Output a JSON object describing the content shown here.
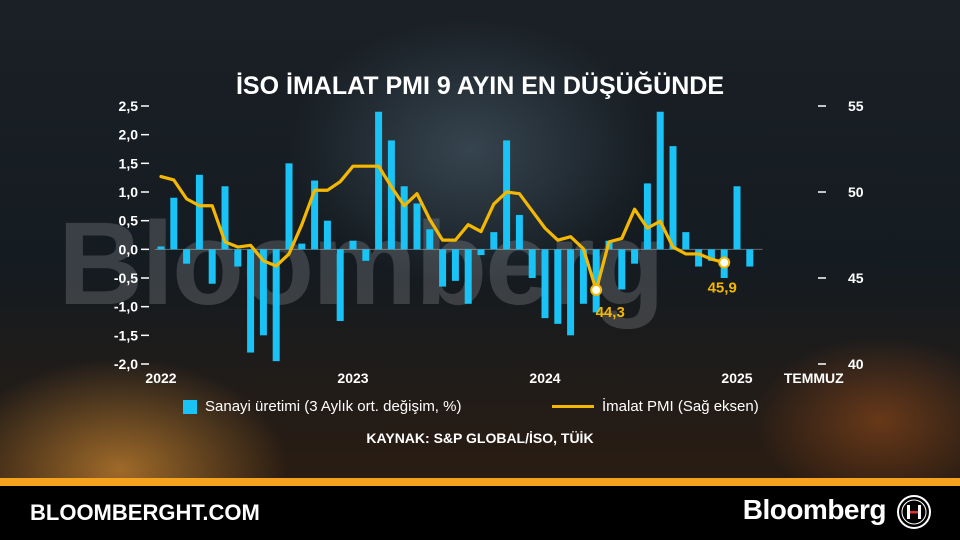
{
  "title": "İSO İMALAT PMI 9 AYIN EN DÜŞÜĞÜNDE",
  "watermark": "Bloomberg",
  "source": "KAYNAK: S&P GLOBAL/İSO, TÜİK",
  "footer": {
    "site": "BLOOMBERGHT.COM",
    "brand": "Bloomberg",
    "logo_icon": "bloomberg-ht-logo-icon"
  },
  "colors": {
    "bar": "#19c3f5",
    "line": "#f5b800",
    "orange_band": "#f5a21e"
  },
  "chart_data": {
    "type": "bar+line",
    "title": "İSO İMALAT PMI 9 AYIN EN DÜŞÜĞÜNDE",
    "x_tick_labels": [
      "2022",
      "2023",
      "2024",
      "2025",
      "TEMMUZ"
    ],
    "x_tick_index": [
      0,
      15,
      30,
      45,
      51
    ],
    "left_axis": {
      "ylim": [
        -2.0,
        2.5
      ],
      "tick_labels": [
        "2,5",
        "2,0",
        "1,5",
        "1,0",
        "0,5",
        "0,0",
        "-0,5",
        "-1,0",
        "-1,5",
        "-2,0"
      ]
    },
    "right_axis": {
      "ylim": [
        40,
        55
      ],
      "tick_labels": [
        "55",
        "50",
        "45",
        "40"
      ]
    },
    "grid": false,
    "legend_position": "bottom",
    "series": [
      {
        "name": "Sanayi üretimi (3 Aylık ort. değişim, %)",
        "type": "bar",
        "axis": "left",
        "values": [
          0.05,
          0.9,
          -0.25,
          1.3,
          -0.6,
          1.1,
          -0.3,
          -1.8,
          -1.5,
          -1.95,
          1.5,
          0.1,
          1.2,
          0.5,
          -1.25,
          0.15,
          -0.2,
          2.4,
          1.9,
          1.1,
          0.8,
          0.35,
          -0.65,
          -0.55,
          -0.95,
          -0.1,
          0.3,
          1.9,
          0.6,
          -0.5,
          -1.2,
          -1.3,
          -1.5,
          -0.95,
          -1.1,
          0.15,
          -0.7,
          -0.25,
          1.15,
          2.4,
          1.8,
          0.3,
          -0.3,
          -0.2,
          -0.5,
          1.1,
          -0.3
        ]
      },
      {
        "name": "İmalat PMI (Sağ eksen)",
        "type": "line",
        "axis": "right",
        "values": [
          50.9,
          50.7,
          49.6,
          49.2,
          49.2,
          47.1,
          46.8,
          46.9,
          46.0,
          45.7,
          46.4,
          48.1,
          50.1,
          50.1,
          50.6,
          51.5,
          51.5,
          51.5,
          50.3,
          49.2,
          49.9,
          48.4,
          47.2,
          47.2,
          48.1,
          47.7,
          49.3,
          50.0,
          49.9,
          48.9,
          47.9,
          47.2,
          47.4,
          46.7,
          44.3,
          47.1,
          47.3,
          49.0,
          47.9,
          48.3,
          46.8,
          46.4,
          46.4,
          46.1,
          45.9
        ],
        "first_index": 0
      }
    ],
    "annotations": [
      {
        "label": "44,3",
        "value": 44.3
      },
      {
        "label": "45,9",
        "value": 45.9
      }
    ]
  },
  "legend": [
    {
      "label": "Sanayi üretimi (3 Aylık ort. değişim, %)",
      "icon": "bar-swatch"
    },
    {
      "label": "İmalat PMI (Sağ eksen)",
      "icon": "line-swatch"
    }
  ]
}
